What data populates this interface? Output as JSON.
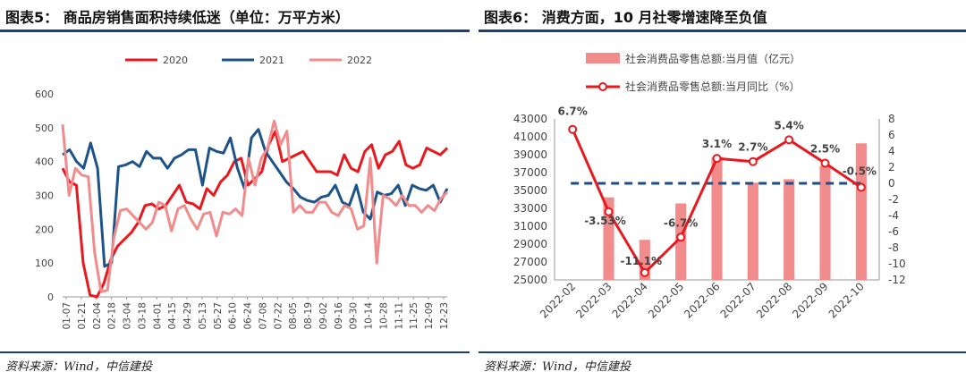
{
  "left": {
    "title": "图表5： 商品房销售面积持续低迷（单位：万平方米）",
    "source": "资料来源：Wind，中信建投",
    "chart_data": {
      "type": "line",
      "title": "",
      "x_ticks": [
        "01-07",
        "01-21",
        "02-04",
        "02-18",
        "03-04",
        "03-18",
        "04-01",
        "04-15",
        "04-29",
        "05-13",
        "05-27",
        "06-10",
        "06-24",
        "07-08",
        "07-22",
        "08-05",
        "08-19",
        "09-02",
        "09-16",
        "09-30",
        "10-14",
        "10-28",
        "11-11",
        "11-25",
        "12-09",
        "12-23"
      ],
      "ylim": [
        0,
        600
      ],
      "y_ticks": [
        0,
        100,
        200,
        300,
        400,
        500,
        600
      ],
      "legend_placement": "top",
      "colors": {
        "2020": "#e8191e",
        "2021": "#1d5389",
        "2022": "#f28b8c"
      },
      "series": [
        {
          "name": "2020",
          "values": [
            380,
            340,
            330,
            100,
            5,
            0,
            40,
            110,
            150,
            170,
            190,
            220,
            270,
            275,
            260,
            270,
            300,
            330,
            280,
            275,
            260,
            320,
            300,
            340,
            360,
            400,
            410,
            330,
            350,
            370,
            450,
            490,
            400,
            410,
            420,
            430,
            400,
            370,
            370,
            370,
            360,
            420,
            380,
            370,
            430,
            450,
            380,
            420,
            430,
            460,
            390,
            380,
            390,
            440,
            430,
            420,
            440
          ]
        },
        {
          "name": "2021",
          "values": [
            420,
            435,
            400,
            380,
            455,
            380,
            90,
            100,
            385,
            390,
            400,
            385,
            430,
            410,
            410,
            380,
            410,
            420,
            435,
            435,
            330,
            440,
            430,
            425,
            470,
            380,
            320,
            470,
            495,
            430,
            400,
            370,
            340,
            320,
            295,
            285,
            280,
            295,
            300,
            330,
            280,
            270,
            330,
            250,
            230,
            310,
            300,
            305,
            330,
            270,
            330,
            320,
            315,
            330,
            280,
            320
          ]
        },
        {
          "name": "2022",
          "values": [
            510,
            300,
            380,
            360,
            355,
            130,
            15,
            20,
            175,
            255,
            260,
            240,
            220,
            200,
            220,
            280,
            270,
            195,
            260,
            270,
            230,
            200,
            245,
            250,
            180,
            250,
            245,
            260,
            240,
            410,
            330,
            410,
            440,
            520,
            450,
            490,
            250,
            270,
            250,
            250,
            280,
            280,
            250,
            240,
            270,
            260,
            200,
            210,
            410,
            100,
            300,
            290,
            270,
            300,
            270,
            270,
            250,
            270,
            255,
            290,
            310
          ]
        }
      ]
    }
  },
  "right": {
    "title": "图表6： 消费方面，10 月社零增速降至负值",
    "source": "资料来源：Wind，中信建投",
    "chart_data": {
      "type": "bar",
      "title": "",
      "categories": [
        "2022-02",
        "2022-03",
        "2022-04",
        "2022-05",
        "2022-06",
        "2022-07",
        "2022-08",
        "2022-09",
        "2022-10"
      ],
      "series": [
        {
          "name": "社会消费品零售总额:当月值（亿元）",
          "type": "bar",
          "axis": "left",
          "color": "#f28b8c",
          "values": [
            null,
            34230,
            29480,
            33550,
            38740,
            35870,
            36260,
            37750,
            40270
          ]
        },
        {
          "name": "社会消费品零售总额:当月同比（%）",
          "type": "line",
          "axis": "right",
          "color": "#e8191e",
          "values": [
            6.7,
            -3.53,
            -11.1,
            -6.7,
            3.1,
            2.7,
            5.4,
            2.5,
            -0.5
          ],
          "labels": [
            "6.7%",
            "-3.53%",
            "-11.1%",
            "-6.7%",
            "3.1%",
            "2.7%",
            "5.4%",
            "2.5%",
            "-0.5%"
          ]
        }
      ],
      "ylim_left": [
        25000,
        43000
      ],
      "y_ticks_left": [
        25000,
        27000,
        29000,
        31000,
        33000,
        35000,
        37000,
        39000,
        41000,
        43000
      ],
      "ylim_right": [
        -12,
        8
      ],
      "y_ticks_right": [
        -12,
        -10,
        -8,
        -6,
        -4,
        -2,
        0,
        2,
        4,
        6,
        8
      ],
      "zero_line": {
        "value": 0,
        "axis": "right",
        "style": "dashed",
        "color": "#1d4e85"
      },
      "legend_placement": "top"
    }
  }
}
